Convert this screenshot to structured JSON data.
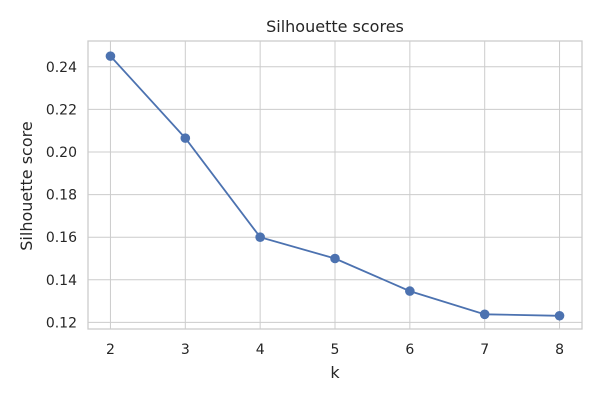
{
  "chart_data": {
    "type": "line",
    "title": "Silhouette scores",
    "xlabel": "k",
    "ylabel": "Silhouette score",
    "x": [
      2,
      3,
      4,
      5,
      6,
      7,
      8
    ],
    "series": [
      {
        "values": [
          0.245,
          0.2065,
          0.16,
          0.15,
          0.1347,
          0.1238,
          0.1231
        ],
        "color": "#4c72b0",
        "marker": "circle"
      }
    ],
    "xticks": [
      "2",
      "3",
      "4",
      "5",
      "6",
      "7",
      "8"
    ],
    "yticks": [
      "0.12",
      "0.14",
      "0.16",
      "0.18",
      "0.20",
      "0.22",
      "0.24"
    ],
    "xlim": [
      1.7,
      8.3
    ],
    "ylim": [
      0.1169,
      0.2521
    ],
    "grid": true,
    "legend": false
  }
}
